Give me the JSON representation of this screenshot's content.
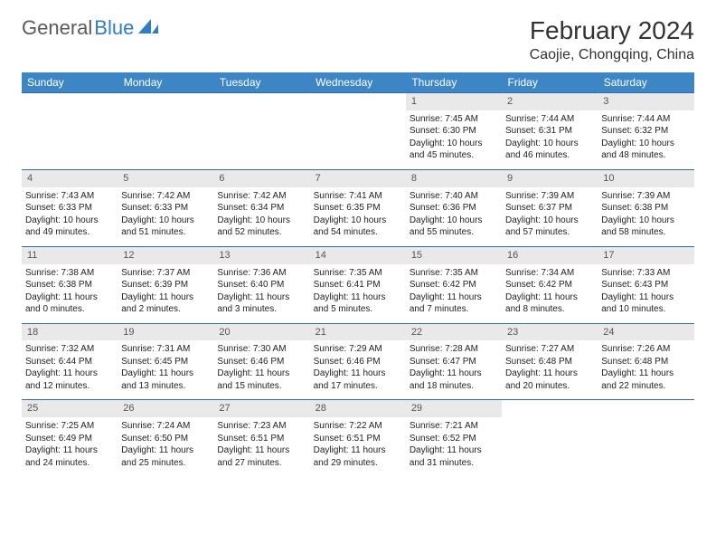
{
  "brand": {
    "name1": "General",
    "name2": "Blue",
    "icon_color": "#2f7dc4"
  },
  "title": {
    "month": "February 2024",
    "location": "Caojie, Chongqing, China"
  },
  "colors": {
    "header_bg": "#3d86c6",
    "header_text": "#ffffff",
    "daynum_bg": "#e9e9e9",
    "row_divider": "#2f6aa3",
    "body_text": "#222222"
  },
  "days_of_week": [
    "Sunday",
    "Monday",
    "Tuesday",
    "Wednesday",
    "Thursday",
    "Friday",
    "Saturday"
  ],
  "weeks": [
    [
      {
        "empty": true
      },
      {
        "empty": true
      },
      {
        "empty": true
      },
      {
        "empty": true
      },
      {
        "n": "1",
        "sunrise": "Sunrise: 7:45 AM",
        "sunset": "Sunset: 6:30 PM",
        "daylight": "Daylight: 10 hours and 45 minutes."
      },
      {
        "n": "2",
        "sunrise": "Sunrise: 7:44 AM",
        "sunset": "Sunset: 6:31 PM",
        "daylight": "Daylight: 10 hours and 46 minutes."
      },
      {
        "n": "3",
        "sunrise": "Sunrise: 7:44 AM",
        "sunset": "Sunset: 6:32 PM",
        "daylight": "Daylight: 10 hours and 48 minutes."
      }
    ],
    [
      {
        "n": "4",
        "sunrise": "Sunrise: 7:43 AM",
        "sunset": "Sunset: 6:33 PM",
        "daylight": "Daylight: 10 hours and 49 minutes."
      },
      {
        "n": "5",
        "sunrise": "Sunrise: 7:42 AM",
        "sunset": "Sunset: 6:33 PM",
        "daylight": "Daylight: 10 hours and 51 minutes."
      },
      {
        "n": "6",
        "sunrise": "Sunrise: 7:42 AM",
        "sunset": "Sunset: 6:34 PM",
        "daylight": "Daylight: 10 hours and 52 minutes."
      },
      {
        "n": "7",
        "sunrise": "Sunrise: 7:41 AM",
        "sunset": "Sunset: 6:35 PM",
        "daylight": "Daylight: 10 hours and 54 minutes."
      },
      {
        "n": "8",
        "sunrise": "Sunrise: 7:40 AM",
        "sunset": "Sunset: 6:36 PM",
        "daylight": "Daylight: 10 hours and 55 minutes."
      },
      {
        "n": "9",
        "sunrise": "Sunrise: 7:39 AM",
        "sunset": "Sunset: 6:37 PM",
        "daylight": "Daylight: 10 hours and 57 minutes."
      },
      {
        "n": "10",
        "sunrise": "Sunrise: 7:39 AM",
        "sunset": "Sunset: 6:38 PM",
        "daylight": "Daylight: 10 hours and 58 minutes."
      }
    ],
    [
      {
        "n": "11",
        "sunrise": "Sunrise: 7:38 AM",
        "sunset": "Sunset: 6:38 PM",
        "daylight": "Daylight: 11 hours and 0 minutes."
      },
      {
        "n": "12",
        "sunrise": "Sunrise: 7:37 AM",
        "sunset": "Sunset: 6:39 PM",
        "daylight": "Daylight: 11 hours and 2 minutes."
      },
      {
        "n": "13",
        "sunrise": "Sunrise: 7:36 AM",
        "sunset": "Sunset: 6:40 PM",
        "daylight": "Daylight: 11 hours and 3 minutes."
      },
      {
        "n": "14",
        "sunrise": "Sunrise: 7:35 AM",
        "sunset": "Sunset: 6:41 PM",
        "daylight": "Daylight: 11 hours and 5 minutes."
      },
      {
        "n": "15",
        "sunrise": "Sunrise: 7:35 AM",
        "sunset": "Sunset: 6:42 PM",
        "daylight": "Daylight: 11 hours and 7 minutes."
      },
      {
        "n": "16",
        "sunrise": "Sunrise: 7:34 AM",
        "sunset": "Sunset: 6:42 PM",
        "daylight": "Daylight: 11 hours and 8 minutes."
      },
      {
        "n": "17",
        "sunrise": "Sunrise: 7:33 AM",
        "sunset": "Sunset: 6:43 PM",
        "daylight": "Daylight: 11 hours and 10 minutes."
      }
    ],
    [
      {
        "n": "18",
        "sunrise": "Sunrise: 7:32 AM",
        "sunset": "Sunset: 6:44 PM",
        "daylight": "Daylight: 11 hours and 12 minutes."
      },
      {
        "n": "19",
        "sunrise": "Sunrise: 7:31 AM",
        "sunset": "Sunset: 6:45 PM",
        "daylight": "Daylight: 11 hours and 13 minutes."
      },
      {
        "n": "20",
        "sunrise": "Sunrise: 7:30 AM",
        "sunset": "Sunset: 6:46 PM",
        "daylight": "Daylight: 11 hours and 15 minutes."
      },
      {
        "n": "21",
        "sunrise": "Sunrise: 7:29 AM",
        "sunset": "Sunset: 6:46 PM",
        "daylight": "Daylight: 11 hours and 17 minutes."
      },
      {
        "n": "22",
        "sunrise": "Sunrise: 7:28 AM",
        "sunset": "Sunset: 6:47 PM",
        "daylight": "Daylight: 11 hours and 18 minutes."
      },
      {
        "n": "23",
        "sunrise": "Sunrise: 7:27 AM",
        "sunset": "Sunset: 6:48 PM",
        "daylight": "Daylight: 11 hours and 20 minutes."
      },
      {
        "n": "24",
        "sunrise": "Sunrise: 7:26 AM",
        "sunset": "Sunset: 6:48 PM",
        "daylight": "Daylight: 11 hours and 22 minutes."
      }
    ],
    [
      {
        "n": "25",
        "sunrise": "Sunrise: 7:25 AM",
        "sunset": "Sunset: 6:49 PM",
        "daylight": "Daylight: 11 hours and 24 minutes."
      },
      {
        "n": "26",
        "sunrise": "Sunrise: 7:24 AM",
        "sunset": "Sunset: 6:50 PM",
        "daylight": "Daylight: 11 hours and 25 minutes."
      },
      {
        "n": "27",
        "sunrise": "Sunrise: 7:23 AM",
        "sunset": "Sunset: 6:51 PM",
        "daylight": "Daylight: 11 hours and 27 minutes."
      },
      {
        "n": "28",
        "sunrise": "Sunrise: 7:22 AM",
        "sunset": "Sunset: 6:51 PM",
        "daylight": "Daylight: 11 hours and 29 minutes."
      },
      {
        "n": "29",
        "sunrise": "Sunrise: 7:21 AM",
        "sunset": "Sunset: 6:52 PM",
        "daylight": "Daylight: 11 hours and 31 minutes."
      },
      {
        "empty": true
      },
      {
        "empty": true
      }
    ]
  ]
}
